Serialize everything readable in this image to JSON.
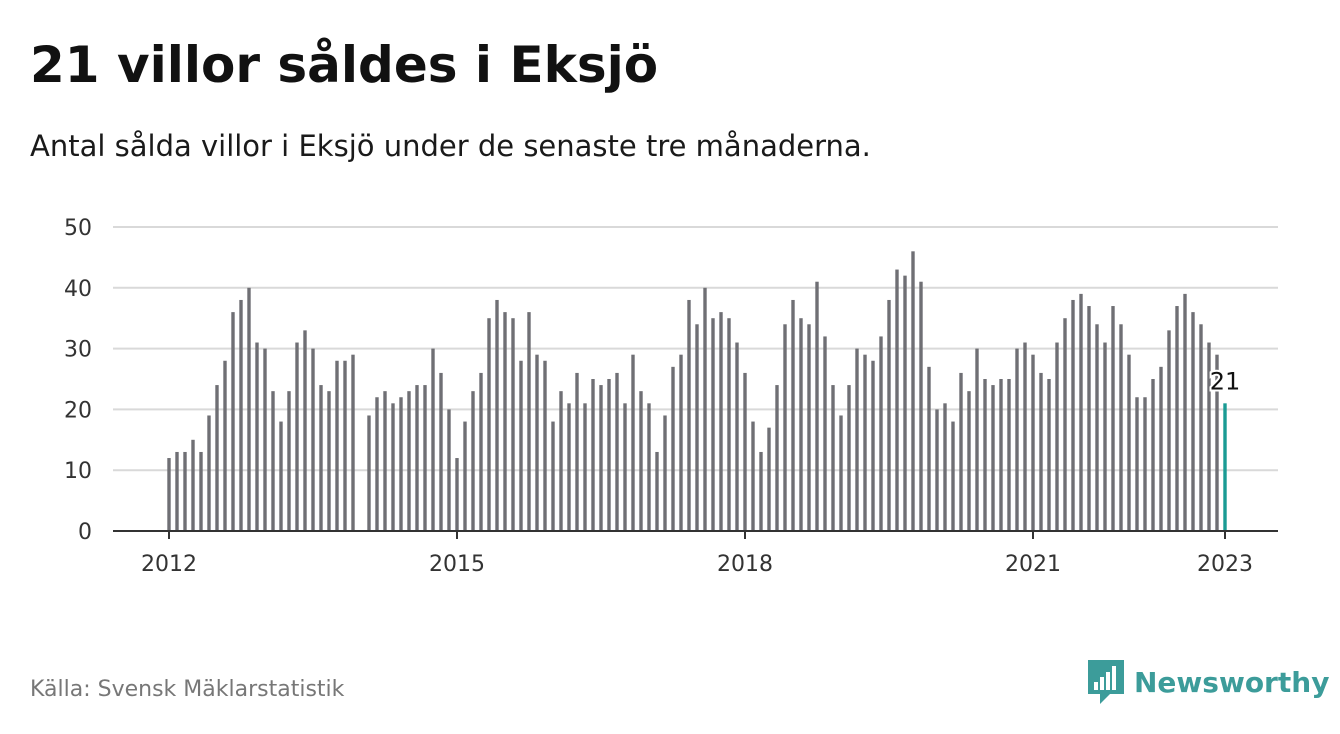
{
  "title": "21 villor såldes i Eksjö",
  "subtitle": "Antal sålda villor i Eksjö under de senaste tre månaderna.",
  "source": "Källa: Svensk Mäklarstatistik",
  "brand": {
    "name": "Newsworthy",
    "icon": "newsworthy-logo-icon",
    "color": "#3c9c9a"
  },
  "colors": {
    "bar": "#6f6f74",
    "highlight": "#1a9b94",
    "grid": "#d9d9d9",
    "axis": "#333333"
  },
  "chart_data": {
    "type": "bar",
    "title": "",
    "xlabel": "",
    "ylabel": "",
    "ylim": [
      0,
      50
    ],
    "yticks": [
      0,
      10,
      20,
      30,
      40,
      50
    ],
    "grid": true,
    "x_start": "2012-01",
    "x_end": "2023-01",
    "xtick_labels": [
      "2012",
      "2015",
      "2018",
      "2021",
      "2023"
    ],
    "x": [
      "2012-01",
      "2012-02",
      "2012-03",
      "2012-04",
      "2012-05",
      "2012-06",
      "2012-07",
      "2012-08",
      "2012-09",
      "2012-10",
      "2012-11",
      "2012-12",
      "2013-01",
      "2013-02",
      "2013-03",
      "2013-04",
      "2013-05",
      "2013-06",
      "2013-07",
      "2013-08",
      "2013-09",
      "2013-10",
      "2013-11",
      "2013-12",
      "2014-01",
      "2014-02",
      "2014-03",
      "2014-04",
      "2014-05",
      "2014-06",
      "2014-07",
      "2014-08",
      "2014-09",
      "2014-10",
      "2014-11",
      "2014-12",
      "2015-01",
      "2015-02",
      "2015-03",
      "2015-04",
      "2015-05",
      "2015-06",
      "2015-07",
      "2015-08",
      "2015-09",
      "2015-10",
      "2015-11",
      "2015-12",
      "2016-01",
      "2016-02",
      "2016-03",
      "2016-04",
      "2016-05",
      "2016-06",
      "2016-07",
      "2016-08",
      "2016-09",
      "2016-10",
      "2016-11",
      "2016-12",
      "2017-01",
      "2017-02",
      "2017-03",
      "2017-04",
      "2017-05",
      "2017-06",
      "2017-07",
      "2017-08",
      "2017-09",
      "2017-10",
      "2017-11",
      "2017-12",
      "2018-01",
      "2018-02",
      "2018-03",
      "2018-04",
      "2018-05",
      "2018-06",
      "2018-07",
      "2018-08",
      "2018-09",
      "2018-10",
      "2018-11",
      "2018-12",
      "2019-01",
      "2019-02",
      "2019-03",
      "2019-04",
      "2019-05",
      "2019-06",
      "2019-07",
      "2019-08",
      "2019-09",
      "2019-10",
      "2019-11",
      "2019-12",
      "2020-01",
      "2020-02",
      "2020-03",
      "2020-04",
      "2020-05",
      "2020-06",
      "2020-07",
      "2020-08",
      "2020-09",
      "2020-10",
      "2020-11",
      "2020-12",
      "2021-01",
      "2021-02",
      "2021-03",
      "2021-04",
      "2021-05",
      "2021-06",
      "2021-07",
      "2021-08",
      "2021-09",
      "2021-10",
      "2021-11",
      "2021-12",
      "2022-01",
      "2022-02",
      "2022-03",
      "2022-04",
      "2022-05",
      "2022-06",
      "2022-07",
      "2022-08",
      "2022-09",
      "2022-10",
      "2022-11",
      "2022-12",
      "2023-01"
    ],
    "values": [
      12,
      13,
      13,
      15,
      13,
      19,
      24,
      28,
      36,
      38,
      40,
      31,
      30,
      23,
      18,
      23,
      31,
      33,
      30,
      24,
      23,
      28,
      28,
      29,
      null,
      19,
      22,
      23,
      21,
      22,
      23,
      24,
      24,
      30,
      26,
      20,
      12,
      18,
      23,
      26,
      35,
      38,
      36,
      35,
      28,
      36,
      29,
      28,
      18,
      23,
      21,
      26,
      21,
      25,
      24,
      25,
      26,
      21,
      29,
      23,
      21,
      13,
      19,
      27,
      29,
      38,
      34,
      40,
      35,
      36,
      35,
      31,
      26,
      18,
      13,
      17,
      24,
      34,
      38,
      35,
      34,
      41,
      32,
      24,
      19,
      24,
      30,
      29,
      28,
      32,
      38,
      43,
      42,
      46,
      41,
      27,
      20,
      21,
      18,
      26,
      23,
      30,
      25,
      24,
      25,
      25,
      30,
      31,
      29,
      26,
      25,
      31,
      35,
      38,
      39,
      37,
      34,
      31,
      37,
      34,
      29,
      22,
      22,
      25,
      27,
      33,
      37,
      39,
      36,
      34,
      31,
      29,
      21
    ],
    "highlight_index": 132,
    "highlight_label": "21"
  }
}
